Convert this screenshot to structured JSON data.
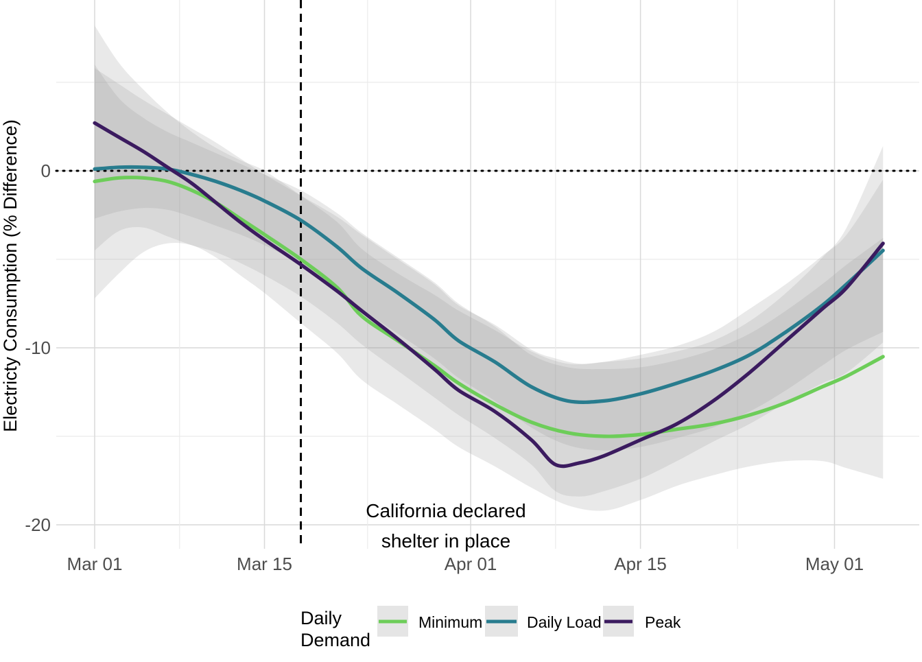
{
  "chart_data": {
    "type": "line",
    "ylabel": "Electricty Consumption (% Difference)",
    "xlabel": "",
    "x_start": "Mar 01",
    "x_ticks": [
      {
        "day": 0,
        "label": "Mar 01"
      },
      {
        "day": 14,
        "label": "Mar 15"
      },
      {
        "day": 31,
        "label": "Apr 01"
      },
      {
        "day": 45,
        "label": "Apr 15"
      },
      {
        "day": 61,
        "label": "May 01"
      }
    ],
    "xlim": [
      "Feb 24",
      "May 12"
    ],
    "ylim": [
      -21.4,
      9.3
    ],
    "y_ticks": [
      0,
      -10,
      -20
    ],
    "grid": true,
    "reference_lines": {
      "horizontal": {
        "y": 0,
        "style": "dotted"
      },
      "vertical": {
        "day": 17,
        "date": "Mar 18",
        "style": "dashed"
      }
    },
    "annotation": {
      "line1": "California declared",
      "line2": "shelter in place"
    },
    "legend": {
      "title_line1": "Daily",
      "title_line2": "Demand",
      "position": "bottom"
    },
    "series": [
      {
        "name": "Minimum",
        "color": "#6DCD59",
        "x": [
          0,
          2,
          4,
          6,
          8,
          10,
          12,
          14,
          17,
          20,
          22,
          25,
          28,
          30,
          33,
          36,
          39,
          42,
          45,
          48,
          51,
          54,
          57,
          60,
          62,
          65
        ],
        "y": [
          -0.6,
          -0.4,
          -0.4,
          -0.6,
          -1.1,
          -1.8,
          -2.7,
          -3.6,
          -5.0,
          -6.6,
          -8.2,
          -9.6,
          -11.0,
          -12.0,
          -13.2,
          -14.2,
          -14.8,
          -15.0,
          -14.9,
          -14.6,
          -14.3,
          -13.8,
          -13.1,
          -12.2,
          -11.6,
          -10.5
        ],
        "band": {
          "outer_lower": [
            -7.2,
            -5.8,
            -4.6,
            -4.1,
            -4.2,
            -4.9,
            -5.9,
            -6.9,
            -8.6,
            -10.3,
            -11.8,
            -13.2,
            -14.6,
            -15.6,
            -16.7,
            -17.9,
            -18.9,
            -19.2,
            -18.6,
            -17.8,
            -17.2,
            -16.7,
            -16.4,
            -16.4,
            -16.8,
            -17.4
          ],
          "outer_upper": [
            8.2,
            6.1,
            4.6,
            3.3,
            2.2,
            1.3,
            0.6,
            0.0,
            -1.4,
            -2.9,
            -4.4,
            -5.8,
            -7.0,
            -7.9,
            -9.0,
            -10.2,
            -10.9,
            -10.8,
            -10.6,
            -10.2,
            -9.6,
            -8.5,
            -6.9,
            -4.9,
            -3.2,
            1.4
          ]
        }
      },
      {
        "name": "Daily Load",
        "color": "#287C8E",
        "x": [
          0,
          2,
          4,
          6,
          8,
          10,
          12,
          14,
          17,
          20,
          22,
          25,
          28,
          30,
          33,
          36,
          39,
          42,
          45,
          48,
          51,
          54,
          57,
          60,
          62,
          65
        ],
        "y": [
          0.1,
          0.2,
          0.2,
          0.1,
          -0.2,
          -0.6,
          -1.1,
          -1.7,
          -2.8,
          -4.3,
          -5.5,
          -6.9,
          -8.4,
          -9.6,
          -10.8,
          -12.2,
          -13.0,
          -13.0,
          -12.6,
          -12.0,
          -11.3,
          -10.4,
          -9.1,
          -7.6,
          -6.4,
          -4.5
        ],
        "band": {
          "inner_lower": [
            -2.7,
            -2.3,
            -2.1,
            -2.2,
            -2.6,
            -3.1,
            -3.6,
            -4.2,
            -5.3,
            -6.7,
            -7.8,
            -9.2,
            -10.6,
            -11.7,
            -13.0,
            -14.5,
            -15.5,
            -15.8,
            -15.6,
            -15.1,
            -14.5,
            -13.6,
            -12.4,
            -11.0,
            -10.1,
            -9.1
          ],
          "inner_upper": [
            6.0,
            4.1,
            3.0,
            2.2,
            1.6,
            1.0,
            0.4,
            -0.2,
            -1.1,
            -2.4,
            -3.5,
            -4.9,
            -6.3,
            -7.5,
            -8.8,
            -10.4,
            -11.1,
            -11.2,
            -11.1,
            -10.7,
            -10.1,
            -9.2,
            -7.9,
            -6.4,
            -5.3,
            -3.8
          ]
        }
      },
      {
        "name": "Peak",
        "color": "#3B1B5F",
        "x": [
          0,
          2,
          4,
          6,
          8,
          10,
          12,
          14,
          17,
          20,
          22,
          25,
          28,
          30,
          33,
          36,
          38,
          40,
          42,
          45,
          48,
          51,
          54,
          57,
          60,
          62,
          65
        ],
        "y": [
          2.7,
          1.9,
          1.1,
          0.2,
          -0.7,
          -1.8,
          -2.9,
          -3.9,
          -5.3,
          -6.8,
          -7.9,
          -9.5,
          -11.2,
          -12.4,
          -13.6,
          -15.2,
          -16.6,
          -16.5,
          -16.1,
          -15.2,
          -14.3,
          -13.0,
          -11.4,
          -9.6,
          -7.8,
          -6.6,
          -4.1
        ],
        "band": {
          "inner_lower": [
            -4.5,
            -3.4,
            -3.2,
            -3.7,
            -4.2,
            -4.6,
            -5.2,
            -5.9,
            -7.1,
            -8.6,
            -9.8,
            -11.3,
            -12.8,
            -13.8,
            -15.1,
            -16.6,
            -18.1,
            -18.4,
            -18.1,
            -17.4,
            -16.4,
            -15.3,
            -14.3,
            -13.1,
            -12.0,
            -11.4,
            -9.7
          ],
          "inner_upper": [
            5.8,
            4.9,
            4.0,
            3.2,
            2.4,
            1.6,
            0.7,
            -0.2,
            -1.4,
            -2.6,
            -3.6,
            -5.0,
            -6.4,
            -7.6,
            -8.7,
            -10.1,
            -10.6,
            -10.9,
            -10.8,
            -10.4,
            -9.9,
            -9.1,
            -7.8,
            -6.4,
            -4.8,
            -3.6,
            -0.5
          ]
        }
      }
    ]
  }
}
